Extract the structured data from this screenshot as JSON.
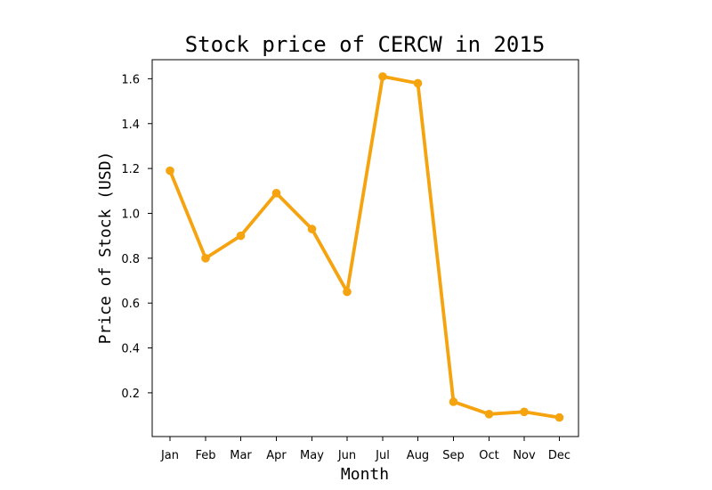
{
  "chart_data": {
    "type": "line",
    "title": "Stock price of CERCW in 2015",
    "xlabel": "Month",
    "ylabel": "Price of Stock (USD)",
    "categories": [
      "Jan",
      "Feb",
      "Mar",
      "Apr",
      "May",
      "Jun",
      "Jul",
      "Aug",
      "Sep",
      "Oct",
      "Nov",
      "Dec"
    ],
    "series": [
      {
        "values": [
          1.19,
          0.8,
          0.9,
          1.09,
          0.93,
          0.65,
          1.61,
          1.58,
          0.16,
          0.105,
          0.115,
          0.09
        ],
        "color": "#f5a30f"
      }
    ],
    "ylim": [
      0.005,
      1.685
    ],
    "yticks": [
      0.2,
      0.4,
      0.6,
      0.8,
      1.0,
      1.2,
      1.4,
      1.6
    ],
    "ytick_labels": [
      "0.2",
      "0.4",
      "0.6",
      "0.8",
      "1.0",
      "1.2",
      "1.4",
      "1.6"
    ],
    "grid": false,
    "legend": "none"
  }
}
